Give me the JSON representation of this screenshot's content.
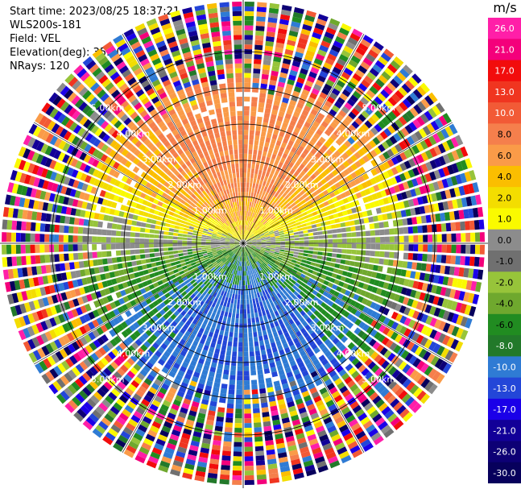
{
  "info": {
    "start_time": "Start time: 2023/08/25 18:37:21",
    "station": "WLS200s-181",
    "field": "Field: VEL",
    "elevation": "Elevation(deg): 35.30",
    "nrays": "NRays: 120"
  },
  "colorbar": {
    "title": "m/s",
    "levels": [
      "26.0",
      "21.0",
      "17.0",
      "13.0",
      "10.0",
      "8.0",
      "6.0",
      "4.0",
      "2.0",
      "1.0",
      "0.0",
      "-1.0",
      "-2.0",
      "-4.0",
      "-6.0",
      "-8.0",
      "-10.0",
      "-13.0",
      "-17.0",
      "-21.0",
      "-26.0",
      "-30.0"
    ],
    "colors": [
      "#ff1fa8",
      "#f4007b",
      "#f20c0c",
      "#f03520",
      "#f25a36",
      "#f57f4c",
      "#fa9b48",
      "#fbbe00",
      "#f3dd00",
      "#fafa00",
      "#8c8c8c",
      "#707070",
      "#97c43a",
      "#6fa82e",
      "#218c21",
      "#22792a",
      "#2f7bd4",
      "#2346d8",
      "#1b00e8",
      "#120098",
      "#0d0075",
      "#07005c"
    ]
  },
  "chart_data": {
    "type": "ppi",
    "field": "VEL",
    "units": "m/s",
    "elevation_deg": 35.3,
    "n_rays": 120,
    "range_rings_km": [
      1,
      2,
      3,
      4,
      5
    ],
    "ring_labels": [
      "1.00km",
      "2.00km",
      "3.00km",
      "4.00km",
      "5.00km"
    ],
    "velocity_bounds": [
      -30,
      -26,
      -21,
      -17,
      -13,
      -10,
      -8,
      -6,
      -4,
      -2,
      -1,
      0,
      1,
      2,
      4,
      6,
      8,
      10,
      13,
      17,
      21,
      26
    ]
  }
}
